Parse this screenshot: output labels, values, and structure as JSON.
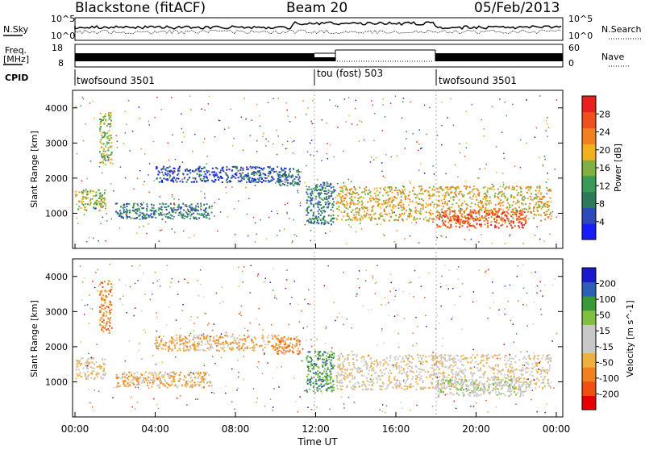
{
  "header": {
    "title": "Blackstone (fitACF)",
    "beam": "Beam 20",
    "date": "05/Feb/2013"
  },
  "noise_panel": {
    "left_label": "N.Sky",
    "right_label": "N.Search",
    "left_ticks": [
      "10^5",
      "10^0"
    ],
    "right_ticks": [
      "10^5",
      "10^0"
    ]
  },
  "freq_panel": {
    "left_label_line1": "Freq.",
    "left_label_line2": "[MHz]",
    "left_ticks": [
      "18",
      "8"
    ],
    "right_label": "Nave",
    "right_ticks": [
      "60",
      "0"
    ]
  },
  "cpid": {
    "label": "CPID",
    "segments": [
      {
        "name": "twofsound 3501",
        "start": 0,
        "end": 12.3
      },
      {
        "name": "tou (fost) 503",
        "start": 12.3,
        "end": 17.9
      },
      {
        "name": "twofsound 3501",
        "start": 17.9,
        "end": 24
      }
    ]
  },
  "time_axis": {
    "label": "Time UT",
    "ticks": [
      "00:00",
      "04:00",
      "08:00",
      "12:00",
      "16:00",
      "20:00",
      "00:00"
    ]
  },
  "colors": {
    "power": [
      "#1a1aff",
      "#2e49b8",
      "#2d7a5a",
      "#3a9a5a",
      "#7fb040",
      "#f0b020",
      "#f08020",
      "#f05020",
      "#e82020"
    ],
    "velocity": [
      "#e80000",
      "#f05010",
      "#f08020",
      "#f0b040",
      "#c8c8c8",
      "#c8c8c8",
      "#80c040",
      "#3a9a3a",
      "#2e5fb8",
      "#1a1acc"
    ]
  },
  "chart_data": [
    {
      "type": "heatmap",
      "title": "Power",
      "ylabel": "Slant Range [km]",
      "xlabel": "",
      "xlim": [
        0,
        24
      ],
      "ylim": [
        0,
        4500
      ],
      "yticks": [
        "1000",
        "2000",
        "3000",
        "4000"
      ],
      "colorbar": {
        "label": "Power [dB]",
        "range": [
          0,
          32
        ],
        "ticks": [
          "4",
          "8",
          "12",
          "16",
          "20",
          "24",
          "28"
        ]
      },
      "regions": [
        {
          "t0": 0.0,
          "t1": 1.5,
          "r0": 1100,
          "r1": 1700,
          "level": 4
        },
        {
          "t0": 1.2,
          "t1": 1.8,
          "r0": 2400,
          "r1": 3900,
          "level": 4
        },
        {
          "t0": 2.0,
          "t1": 6.8,
          "r0": 850,
          "r1": 1300,
          "level": 2
        },
        {
          "t0": 4.0,
          "t1": 10.5,
          "r0": 1900,
          "r1": 2350,
          "level": 1
        },
        {
          "t0": 10.0,
          "t1": 11.2,
          "r0": 1800,
          "r1": 2300,
          "level": 2
        },
        {
          "t0": 11.5,
          "t1": 12.9,
          "r0": 700,
          "r1": 1900,
          "level": 2
        },
        {
          "t0": 13.0,
          "t1": 23.7,
          "r0": 800,
          "r1": 1800,
          "level": 5
        },
        {
          "t0": 18.0,
          "t1": 22.5,
          "r0": 600,
          "r1": 1100,
          "level": 7
        }
      ]
    },
    {
      "type": "heatmap",
      "title": "Velocity",
      "ylabel": "Slant Range [km]",
      "xlabel": "Time UT",
      "xlim": [
        0,
        24
      ],
      "ylim": [
        0,
        4500
      ],
      "yticks": [
        "1000",
        "2000",
        "3000",
        "4000"
      ],
      "colorbar": {
        "label": "Velocity [m s^-1]",
        "ticks": [
          "200",
          "100",
          "50",
          "15",
          "-15",
          "-50",
          "-100",
          "-200"
        ]
      },
      "regions": [
        {
          "t0": 0.0,
          "t1": 1.5,
          "r0": 1100,
          "r1": 1700,
          "level": 4
        },
        {
          "t0": 1.2,
          "t1": 1.8,
          "r0": 2400,
          "r1": 3900,
          "level": 2
        },
        {
          "t0": 2.0,
          "t1": 6.8,
          "r0": 850,
          "r1": 1300,
          "level": 3
        },
        {
          "t0": 4.0,
          "t1": 10.5,
          "r0": 1900,
          "r1": 2350,
          "level": 3
        },
        {
          "t0": 10.0,
          "t1": 11.2,
          "r0": 1800,
          "r1": 2300,
          "level": 2
        },
        {
          "t0": 11.5,
          "t1": 12.9,
          "r0": 700,
          "r1": 1900,
          "level": 7
        },
        {
          "t0": 13.0,
          "t1": 23.7,
          "r0": 800,
          "r1": 1800,
          "level": 4
        },
        {
          "t0": 18.0,
          "t1": 22.5,
          "r0": 600,
          "r1": 1100,
          "level": 5
        }
      ]
    }
  ]
}
